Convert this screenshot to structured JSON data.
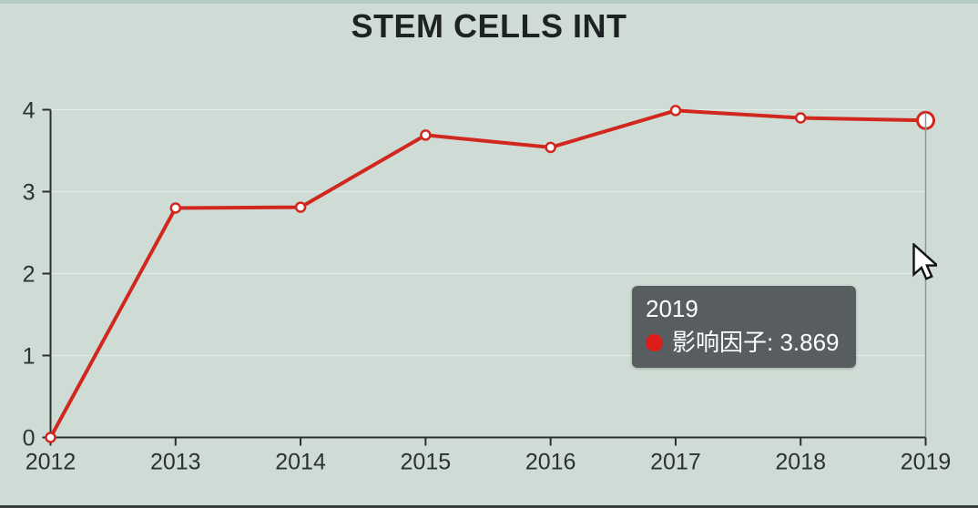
{
  "title": "STEM CELLS INT",
  "colors": {
    "background": "#cfdcd5",
    "top_strip": "#b4cbc2",
    "bottom_strip": "#373d3c",
    "line": "#d0281e",
    "marker_fill": "#ffffff",
    "axis": "#2b2f31",
    "label": "#2c3134",
    "gridline": "rgba(255,255,255,0.45)",
    "hover_line": "#8d989c",
    "tooltip_bg": "rgba(83,87,89,0.96)",
    "tooltip_text": "#ffffff",
    "tooltip_dot": "#dc1d1a"
  },
  "chart_data": {
    "type": "line",
    "title": "STEM CELLS INT",
    "categories": [
      "2012",
      "2013",
      "2014",
      "2015",
      "2016",
      "2017",
      "2018",
      "2019"
    ],
    "series": [
      {
        "name": "影响因子",
        "values": [
          0,
          2.8,
          2.81,
          3.69,
          3.54,
          3.99,
          3.9,
          3.869
        ]
      }
    ],
    "ylim": [
      0,
      4
    ],
    "yticks": [
      0,
      1,
      2,
      3,
      4
    ],
    "grid": "faint horizontal gridlines at integer values",
    "legend": "none",
    "highlighted_category": "2019"
  },
  "tooltip": {
    "title": "2019",
    "text": "影响因子: 3.869"
  }
}
